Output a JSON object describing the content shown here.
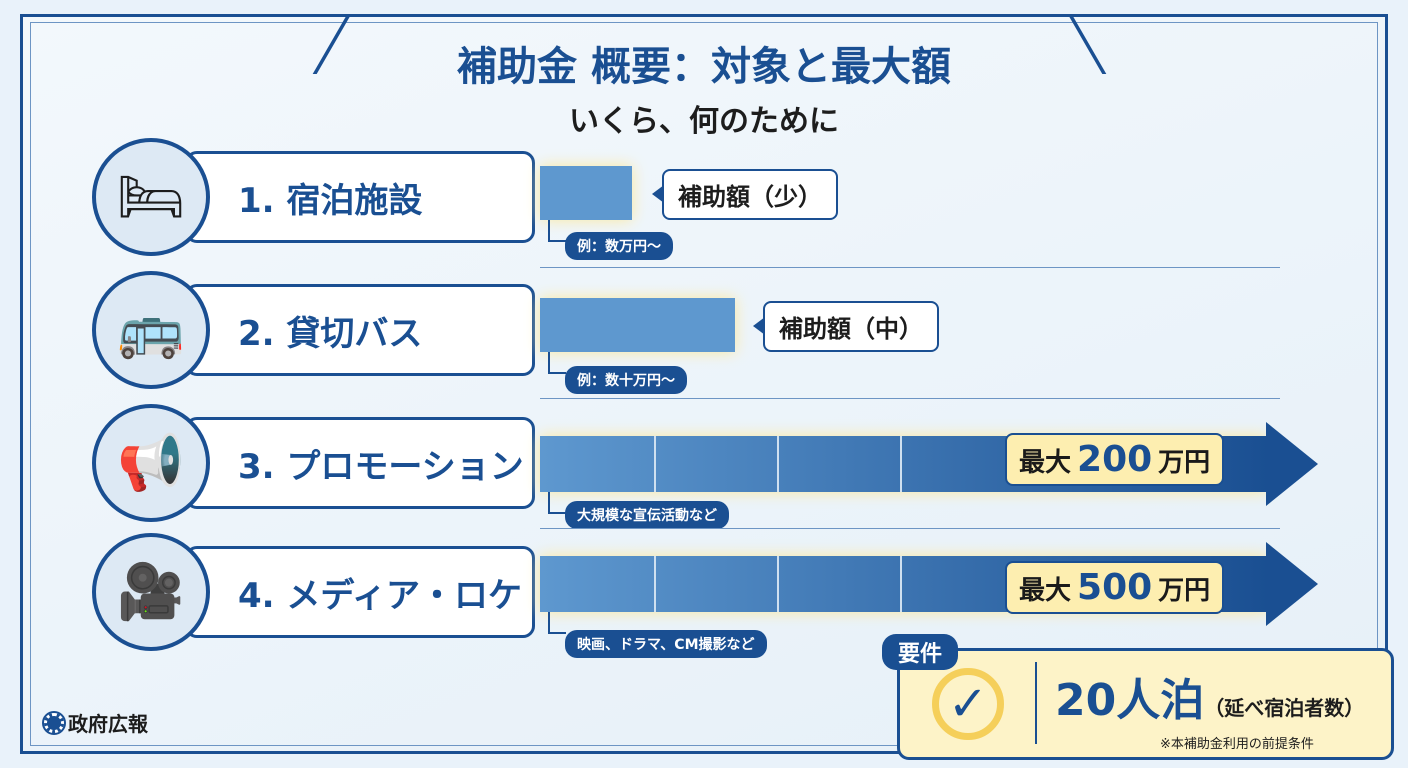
{
  "header": {
    "title": "補助金 概要：対象と最大額",
    "subtitle": "いくら、何のために"
  },
  "rows": [
    {
      "label": "1. 宿泊施設",
      "icon": "hotel-bed-icon",
      "callout": "補助額（少）",
      "note": "例：数万円〜",
      "level": "small"
    },
    {
      "label": "2. 貸切バス",
      "icon": "bus-icon",
      "callout": "補助額（中）",
      "note": "例：数十万円〜",
      "level": "medium"
    },
    {
      "label": "3. プロモーション",
      "icon": "megaphone-icon",
      "max_prefix": "最大",
      "max_value": "200",
      "max_unit": "万円",
      "note": "大規模な宣伝活動など"
    },
    {
      "label": "4. メディア・ロケ",
      "icon": "video-camera-icon",
      "max_prefix": "最大",
      "max_value": "500",
      "max_unit": "万円",
      "note": "映画、ドラマ、CM撮影など"
    }
  ],
  "requirement": {
    "tag": "要件",
    "value": "20人泊",
    "detail": "（延べ宿泊者数）",
    "note": "※本補助金利用の前提条件"
  },
  "footer": {
    "publisher": "政府広報"
  },
  "colors": {
    "primary": "#1a4f92",
    "bar": "#5e98cf",
    "highlight": "#fdeeb0"
  }
}
